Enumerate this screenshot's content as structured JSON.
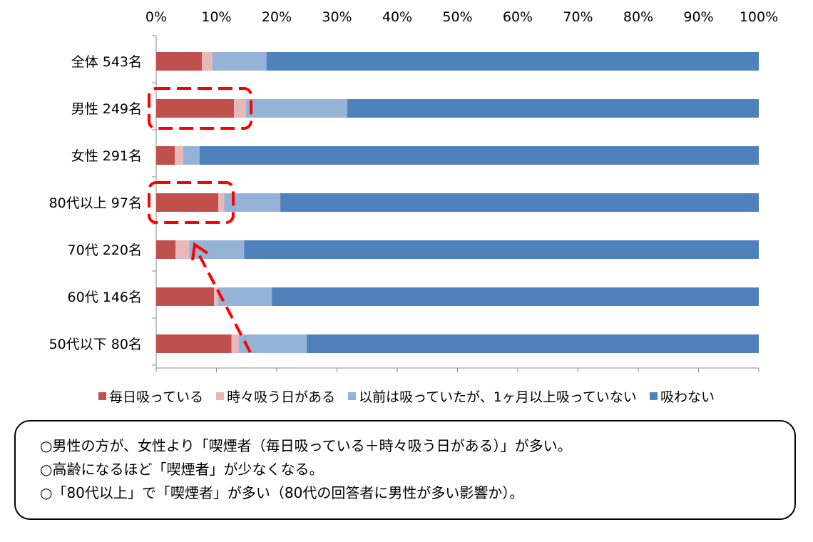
{
  "chart_data": {
    "type": "bar",
    "orientation": "horizontal",
    "stacked": "percent",
    "categories": [
      "全体 543名",
      "男性 249名",
      "女性 291名",
      "80代以上 97名",
      "70代 220名",
      "60代 146名",
      "50代以下 80名"
    ],
    "series": [
      {
        "name": "毎日吸っている",
        "color": "#c0504d",
        "values": [
          7.6,
          12.9,
          3.1,
          10.3,
          3.2,
          9.6,
          12.5
        ]
      },
      {
        "name": "時々吸う日がある",
        "color": "#e6b9b8",
        "values": [
          1.7,
          2.0,
          1.4,
          1.0,
          2.3,
          0.7,
          1.2
        ]
      },
      {
        "name": "以前は吸っていたが、1ヶ月以上吸っていない",
        "color": "#95b3d7",
        "values": [
          9.0,
          16.8,
          2.7,
          9.3,
          9.1,
          8.9,
          11.3
        ]
      },
      {
        "name": "吸わない",
        "color": "#4f81bd",
        "values": [
          81.7,
          68.3,
          92.8,
          79.4,
          85.4,
          80.8,
          75.0
        ]
      }
    ],
    "x_ticks": [
      "0%",
      "10%",
      "20%",
      "30%",
      "40%",
      "50%",
      "60%",
      "70%",
      "80%",
      "90%",
      "100%"
    ],
    "xlim": [
      0,
      100
    ],
    "grid": false,
    "legend_position": "bottom",
    "annotations": [
      {
        "type": "dashed-box",
        "color": "#ff0000",
        "target": "男性 249名"
      },
      {
        "type": "dashed-box",
        "color": "#ff0000",
        "target": "80代以上 97名"
      },
      {
        "type": "dashed-arrow",
        "color": "#ff0000",
        "from": "50代以下 80名",
        "to": "70代 220名"
      }
    ]
  },
  "notes": [
    "○男性の方が、女性より「喫煙者（毎日吸っている＋時々吸う日がある）」が多い。",
    "○高齢になるほど「喫煙者」が少なくなる。",
    "○「80代以上」で「喫煙者」が多い（80代の回答者に男性が多い影響か）。"
  ]
}
